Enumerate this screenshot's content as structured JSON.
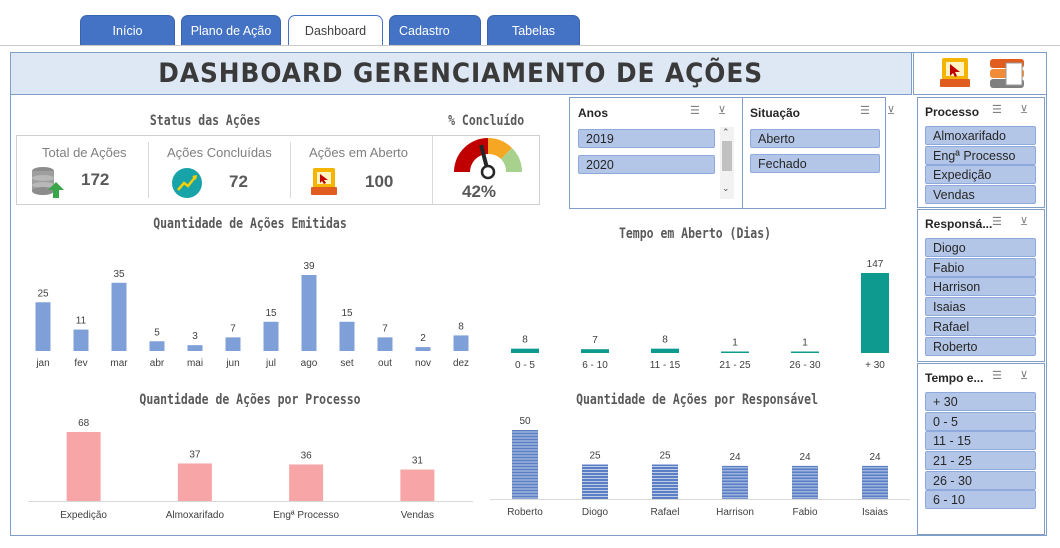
{
  "tabs": [
    "Início",
    "Plano de Ação",
    "Dashboard",
    "Cadastro",
    "Tabelas"
  ],
  "active_tab": "Dashboard",
  "header": {
    "title": "DASHBOARD GERENCIAMENTO DE AÇÕES"
  },
  "status": {
    "title": "Status das Ações",
    "total_label": "Total de Ações",
    "total_value": "172",
    "concl_label": "Ações Concluídas",
    "concl_value": "72",
    "open_label": "Ações em Aberto",
    "open_value": "100"
  },
  "pct": {
    "title": "% Concluído",
    "value": "42%",
    "fraction": 0.42
  },
  "slicers": {
    "anos": {
      "title": "Anos",
      "items": [
        "2019",
        "2020"
      ]
    },
    "situacao": {
      "title": "Situação",
      "items": [
        "Aberto",
        "Fechado"
      ]
    },
    "processo": {
      "title": "Processo",
      "items": [
        "Almoxarifado",
        "Engª Processo",
        "Expedição",
        "Vendas"
      ]
    },
    "responsavel": {
      "title": "Responsá...",
      "items": [
        "Diogo",
        "Fabio",
        "Harrison",
        "Isaias",
        "Rafael",
        "Roberto"
      ]
    },
    "tempo": {
      "title": "Tempo e...",
      "items": [
        "+ 30",
        "0 - 5",
        "11 - 15",
        "21 - 25",
        "26 - 30",
        "6 - 10"
      ]
    }
  },
  "colors": {
    "tab": "#4472c4",
    "bar_blue": "#7f9fd8",
    "bar_teal": "#0e9a8f",
    "bar_pink": "#f8a5a8",
    "slicer_item": "#b4c6e7"
  },
  "chart_data": [
    {
      "type": "bar",
      "title": "Quantidade de Ações Emitidas",
      "categories": [
        "jan",
        "fev",
        "mar",
        "abr",
        "mai",
        "jun",
        "jul",
        "ago",
        "set",
        "out",
        "nov",
        "dez"
      ],
      "values": [
        25,
        11,
        35,
        5,
        3,
        7,
        15,
        39,
        15,
        7,
        2,
        8
      ]
    },
    {
      "type": "bar",
      "title": "Tempo em Aberto (Dias)",
      "categories": [
        "0 - 5",
        "6 - 10",
        "11 - 15",
        "21 - 25",
        "26 - 30",
        "+ 30"
      ],
      "values": [
        8,
        7,
        8,
        1,
        1,
        147
      ]
    },
    {
      "type": "bar",
      "title": "Quantidade de Ações por Processo",
      "categories": [
        "Expedição",
        "Almoxarifado",
        "Engª Processo",
        "Vendas"
      ],
      "values": [
        68,
        37,
        36,
        31
      ]
    },
    {
      "type": "bar",
      "title": "Quantidade de Ações por Responsável",
      "categories": [
        "Roberto",
        "Diogo",
        "Rafael",
        "Harrison",
        "Fabio",
        "Isaias"
      ],
      "values": [
        50,
        25,
        25,
        24,
        24,
        24
      ]
    }
  ]
}
